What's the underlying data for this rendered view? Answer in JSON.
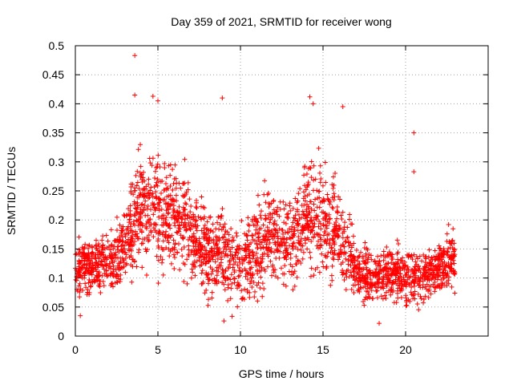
{
  "chart_data": {
    "type": "scatter",
    "title": "Day 359 of 2021, SRMTID for receiver wong",
    "xlabel": "GPS time / hours",
    "ylabel": "SRMTID / TECUs",
    "xlim": [
      0,
      25
    ],
    "ylim": [
      0,
      0.5
    ],
    "grid": true,
    "marker": "+",
    "series_color": "#ff0000",
    "x_ticks": [
      0,
      5,
      10,
      15,
      20
    ],
    "x_tick_labels": [
      "0",
      "5",
      "10",
      "15",
      "20"
    ],
    "y_ticks": [
      0,
      0.05,
      0.1,
      0.15,
      0.2,
      0.25,
      0.3,
      0.35,
      0.4,
      0.45,
      0.5
    ],
    "y_tick_labels": [
      "0",
      "0.05",
      "0.1",
      "0.15",
      "0.2",
      "0.25",
      "0.3",
      "0.35",
      "0.4",
      "0.45",
      "0.5"
    ],
    "density_profile": {
      "x": [
        0,
        1,
        2,
        3,
        3.5,
        4,
        5,
        6,
        7,
        8,
        9,
        10,
        11,
        12,
        13,
        14,
        15,
        16,
        17,
        18,
        19,
        20,
        21,
        22,
        23
      ],
      "y_median": [
        0.12,
        0.12,
        0.13,
        0.15,
        0.19,
        0.22,
        0.22,
        0.21,
        0.18,
        0.14,
        0.15,
        0.12,
        0.14,
        0.18,
        0.16,
        0.21,
        0.2,
        0.17,
        0.11,
        0.1,
        0.11,
        0.1,
        0.1,
        0.12,
        0.13
      ],
      "y_spread": [
        0.04,
        0.04,
        0.04,
        0.05,
        0.08,
        0.08,
        0.08,
        0.07,
        0.07,
        0.06,
        0.07,
        0.06,
        0.07,
        0.07,
        0.07,
        0.08,
        0.08,
        0.06,
        0.04,
        0.04,
        0.04,
        0.04,
        0.04,
        0.04,
        0.04
      ]
    },
    "notable_points": [
      {
        "x": 3.6,
        "y": 0.483
      },
      {
        "x": 3.6,
        "y": 0.415
      },
      {
        "x": 4.7,
        "y": 0.413
      },
      {
        "x": 5.0,
        "y": 0.405
      },
      {
        "x": 8.9,
        "y": 0.41
      },
      {
        "x": 14.2,
        "y": 0.412
      },
      {
        "x": 14.4,
        "y": 0.4
      },
      {
        "x": 16.2,
        "y": 0.395
      },
      {
        "x": 20.5,
        "y": 0.35
      },
      {
        "x": 20.5,
        "y": 0.283
      },
      {
        "x": 9.0,
        "y": 0.026
      },
      {
        "x": 18.4,
        "y": 0.022
      },
      {
        "x": 0.3,
        "y": 0.035
      }
    ],
    "x_range_end": 23.0,
    "seed": 359
  }
}
